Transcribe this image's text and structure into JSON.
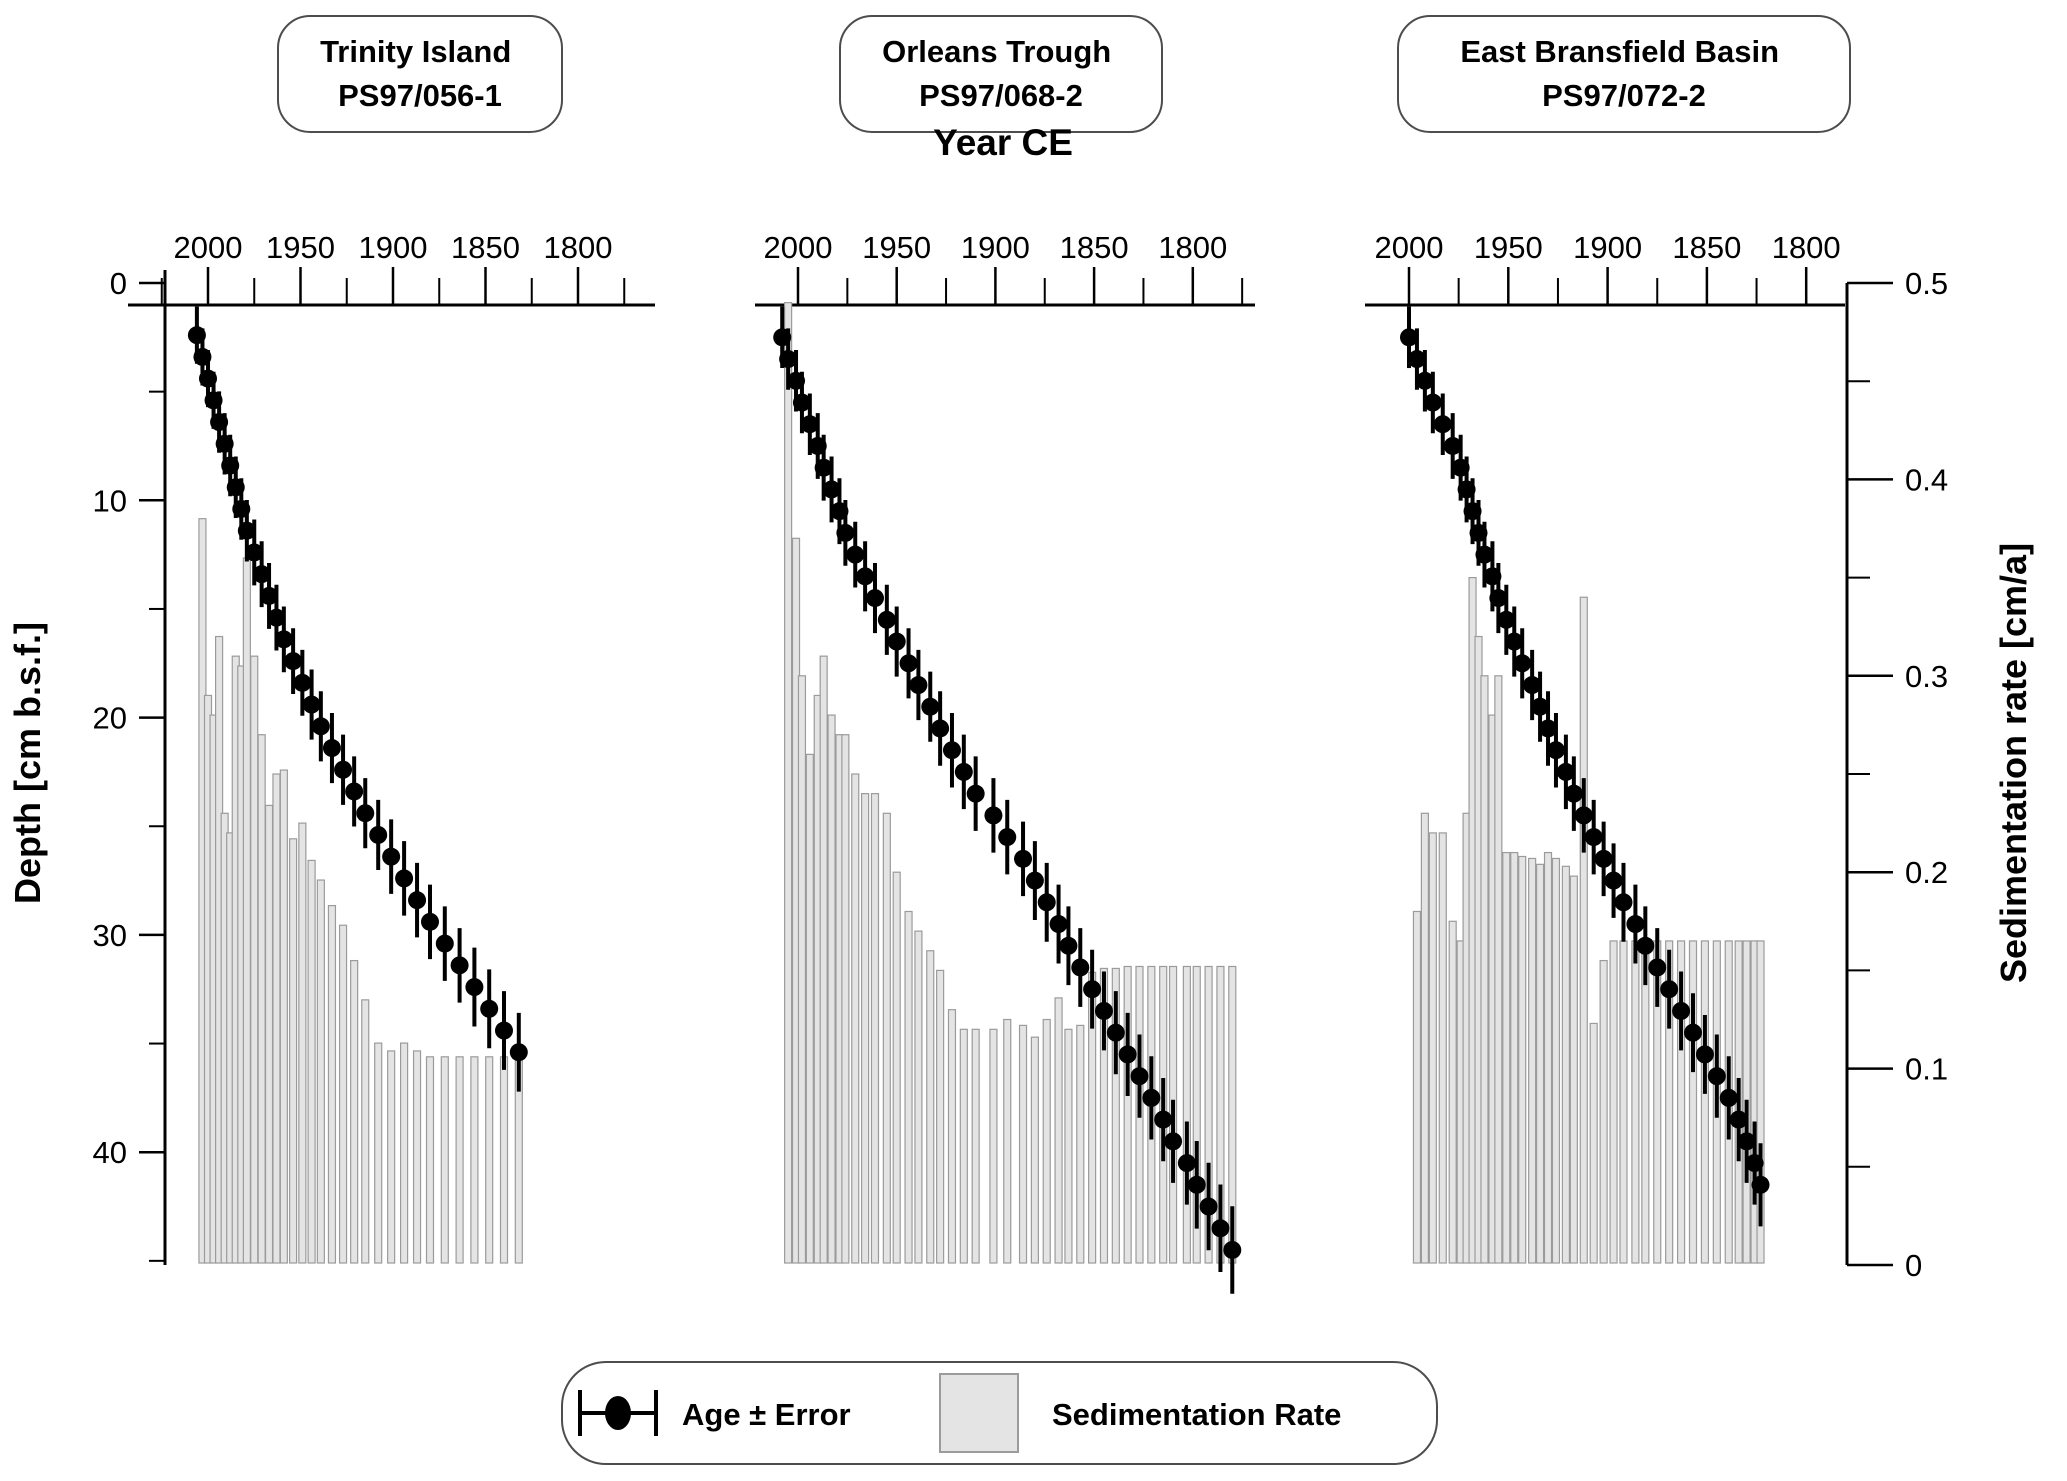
{
  "chart_data": {
    "type": "scatter+bar",
    "description": "Age-depth models (Age ± Error points) and sedimentation-rate bars for three sediment cores",
    "year_axis": {
      "label": "Year CE",
      "major_ticks": [
        2000,
        1950,
        1900,
        1850,
        1800
      ],
      "minor_ticks": [
        2025,
        1975,
        1925,
        1875,
        1825,
        1775
      ],
      "direction": "reversed-left-to-right"
    },
    "depth_axis": {
      "label": "Depth [cm b.s.f.]",
      "major_ticks": [
        "0",
        "10",
        "20",
        "30",
        "40"
      ],
      "major_tick_values": [
        0,
        10,
        20,
        30,
        40
      ],
      "minor_tick_values": [
        5,
        15,
        25,
        35,
        45
      ],
      "range": [
        0,
        45.2
      ]
    },
    "rate_axis": {
      "label": "Sedimentation rate [cm/a]",
      "major_ticks": [
        "0.5",
        "0.4",
        "0.3",
        "0.2",
        "0.1",
        "0"
      ],
      "major_tick_values": [
        0.5,
        0.4,
        0.3,
        0.2,
        0.1,
        0
      ],
      "minor_step": 0.05,
      "range": [
        0,
        0.5
      ]
    },
    "legend": {
      "age_label": "Age ± Error",
      "rate_label": "Sedimentation Rate"
    },
    "colors": {
      "bar_fill": "#e4e4e4",
      "bar_stroke": "#9b9b9b",
      "marker": "#000000",
      "axis": "#000000"
    },
    "panels": [
      {
        "id": "trinity-island",
        "title_line1": "Trinity Island",
        "title_line2": "PS97/056-1",
        "age_series": {
          "years": [
            2006,
            2003,
            2000,
            1997,
            1994,
            1991,
            1988,
            1985,
            1982,
            1979,
            1975,
            1971,
            1967,
            1963,
            1959,
            1954,
            1949,
            1944,
            1939,
            1933,
            1927,
            1921,
            1915,
            1908,
            1901,
            1894,
            1887,
            1880,
            1872,
            1864,
            1856,
            1848,
            1840,
            1832
          ],
          "depths_cm": [
            2.4,
            3.4,
            4.4,
            5.4,
            6.4,
            7.4,
            8.4,
            9.4,
            10.4,
            11.4,
            12.4,
            13.4,
            14.4,
            15.4,
            16.4,
            17.4,
            18.4,
            19.4,
            20.4,
            21.4,
            22.4,
            23.4,
            24.4,
            25.4,
            26.4,
            27.4,
            28.4,
            29.4,
            30.4,
            31.4,
            32.4,
            33.4,
            34.4,
            35.4
          ],
          "error_cm": [
            0.9,
            0.9,
            0.9,
            0.9,
            1.0,
            1.0,
            1.0,
            1.0,
            1.0,
            1.0,
            1.1,
            1.1,
            1.1,
            1.1,
            1.1,
            1.1,
            1.1,
            1.2,
            1.2,
            1.2,
            1.2,
            1.2,
            1.2,
            1.2,
            1.3,
            1.3,
            1.3,
            1.3,
            1.3,
            1.3,
            1.4,
            1.4,
            1.4,
            1.4
          ]
        },
        "sed_rate_cm_per_a": [
          0.38,
          0.29,
          0.28,
          0.32,
          0.23,
          0.22,
          0.31,
          0.305,
          0.36,
          0.31,
          0.27,
          0.234,
          0.25,
          0.252,
          0.217,
          0.225,
          0.206,
          0.196,
          0.183,
          0.173,
          0.155,
          0.135,
          0.113,
          0.109,
          0.113,
          0.109,
          0.106,
          0.106,
          0.106,
          0.106,
          0.106,
          0.106,
          0.106
        ]
      },
      {
        "id": "orleans-trough",
        "title_line1": "Orleans Trough",
        "title_line2": "PS97/068-2",
        "age_series": {
          "years": [
            2008,
            2005,
            2001,
            1998,
            1994,
            1990,
            1987,
            1983,
            1979,
            1976,
            1971,
            1966,
            1961,
            1955,
            1950,
            1944,
            1939,
            1933,
            1928,
            1922,
            1916,
            1910,
            1901,
            1894,
            1886,
            1880,
            1874,
            1868,
            1863,
            1857,
            1851,
            1845,
            1839,
            1833,
            1827,
            1821,
            1815,
            1810,
            1803,
            1798,
            1792,
            1786,
            1780
          ],
          "depths_cm": [
            2.5,
            3.5,
            4.5,
            5.5,
            6.5,
            7.5,
            8.5,
            9.5,
            10.5,
            11.5,
            12.5,
            13.5,
            14.5,
            15.5,
            16.5,
            17.5,
            18.5,
            19.5,
            20.5,
            21.5,
            22.5,
            23.5,
            24.5,
            25.5,
            26.5,
            27.5,
            28.5,
            29.5,
            30.5,
            31.5,
            32.5,
            33.5,
            34.5,
            35.5,
            36.5,
            37.5,
            38.5,
            39.5,
            40.5,
            41.5,
            42.5,
            43.5,
            44.5
          ],
          "error_cm": [
            1.0,
            1.0,
            1.0,
            1.0,
            1.0,
            1.1,
            1.1,
            1.1,
            1.1,
            1.1,
            1.1,
            1.2,
            1.2,
            1.2,
            1.2,
            1.2,
            1.2,
            1.2,
            1.3,
            1.3,
            1.3,
            1.3,
            1.3,
            1.3,
            1.3,
            1.4,
            1.4,
            1.4,
            1.4,
            1.4,
            1.4,
            1.4,
            1.5,
            1.5,
            1.5,
            1.5,
            1.5,
            1.5,
            1.5,
            1.6,
            1.6,
            1.6,
            1.6
          ]
        },
        "sed_rate_cm_per_a": [
          0.49,
          0.37,
          0.3,
          0.26,
          0.29,
          0.31,
          0.28,
          0.27,
          0.27,
          0.25,
          0.24,
          0.24,
          0.23,
          0.2,
          0.18,
          0.17,
          0.16,
          0.15,
          0.13,
          0.12,
          0.12,
          0.12,
          0.125,
          0.122,
          0.116,
          0.125,
          0.136,
          0.12,
          0.122,
          0.149,
          0.151,
          0.151,
          0.152,
          0.152,
          0.152,
          0.152,
          0.152,
          0.152,
          0.152,
          0.152,
          0.152,
          0.152
        ]
      },
      {
        "id": "east-bransfield-basin",
        "title_line1": "East Bransfield Basin",
        "title_line2": "PS97/072-2",
        "age_series": {
          "years": [
            2000,
            1996,
            1992,
            1988,
            1983,
            1978,
            1974,
            1971,
            1968,
            1965,
            1962,
            1958,
            1955,
            1951,
            1947,
            1943,
            1938,
            1934,
            1930,
            1926,
            1921,
            1917,
            1912,
            1907,
            1902,
            1897,
            1892,
            1886,
            1881,
            1875,
            1869,
            1863,
            1857,
            1851,
            1845,
            1839,
            1834,
            1830,
            1826,
            1823
          ],
          "depths_cm": [
            2.5,
            3.5,
            4.5,
            5.5,
            6.5,
            7.5,
            8.5,
            9.5,
            10.5,
            11.5,
            12.5,
            13.5,
            14.5,
            15.5,
            16.5,
            17.5,
            18.5,
            19.5,
            20.5,
            21.5,
            22.5,
            23.5,
            24.5,
            25.5,
            26.5,
            27.5,
            28.5,
            29.5,
            30.5,
            31.5,
            32.5,
            33.5,
            34.5,
            35.5,
            36.5,
            37.5,
            38.5,
            39.5,
            40.5,
            41.5
          ],
          "error_cm": [
            1.0,
            1.0,
            1.0,
            1.0,
            1.0,
            1.1,
            1.1,
            1.1,
            1.1,
            1.1,
            1.1,
            1.2,
            1.2,
            1.2,
            1.2,
            1.2,
            1.2,
            1.2,
            1.3,
            1.3,
            1.3,
            1.3,
            1.3,
            1.3,
            1.3,
            1.3,
            1.4,
            1.4,
            1.4,
            1.4,
            1.4,
            1.4,
            1.4,
            1.4,
            1.5,
            1.5,
            1.5,
            1.5,
            1.5,
            1.5
          ]
        },
        "sed_rate_cm_per_a": [
          0.18,
          0.23,
          0.22,
          0.22,
          0.175,
          0.165,
          0.23,
          0.35,
          0.32,
          0.3,
          0.28,
          0.3,
          0.21,
          0.21,
          0.208,
          0.207,
          0.204,
          0.21,
          0.207,
          0.203,
          0.198,
          0.34,
          0.123,
          0.155,
          0.165,
          0.165,
          0.165,
          0.165,
          0.165,
          0.165,
          0.165,
          0.165,
          0.165,
          0.165,
          0.165,
          0.165,
          0.165,
          0.165,
          0.165
        ]
      }
    ]
  }
}
